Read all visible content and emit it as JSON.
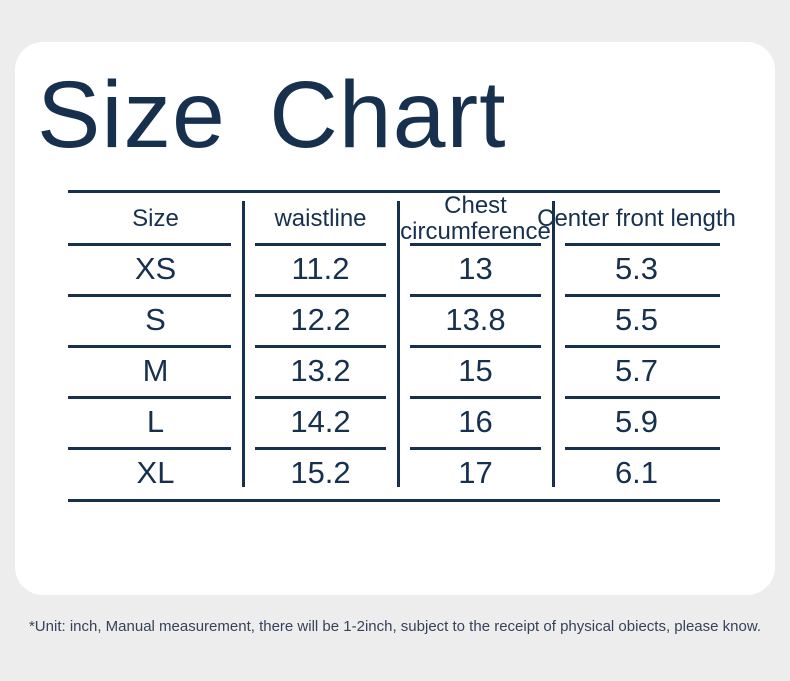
{
  "title": "Size Chart",
  "colors": {
    "ink_navy": "#16304d",
    "background_gray": "#ededed",
    "card_white": "#ffffff",
    "note_text": "#36425b"
  },
  "chart_data": {
    "type": "table",
    "title": "Size Chart",
    "unit": "inch",
    "columns": [
      "Size",
      "waistline",
      "Chest circumference",
      "Center front length"
    ],
    "rows": [
      [
        "XS",
        "11.2",
        "13",
        "5.3"
      ],
      [
        "S",
        "12.2",
        "13.8",
        "5.5"
      ],
      [
        "M",
        "13.2",
        "15",
        "5.7"
      ],
      [
        "L",
        "14.2",
        "16",
        "5.9"
      ],
      [
        "XL",
        "15.2",
        "17",
        "6.1"
      ]
    ]
  },
  "footer": {
    "note": "*Unit: inch, Manual measurement, there will be 1-2inch, subject to the receipt of physical obiects, please know."
  }
}
